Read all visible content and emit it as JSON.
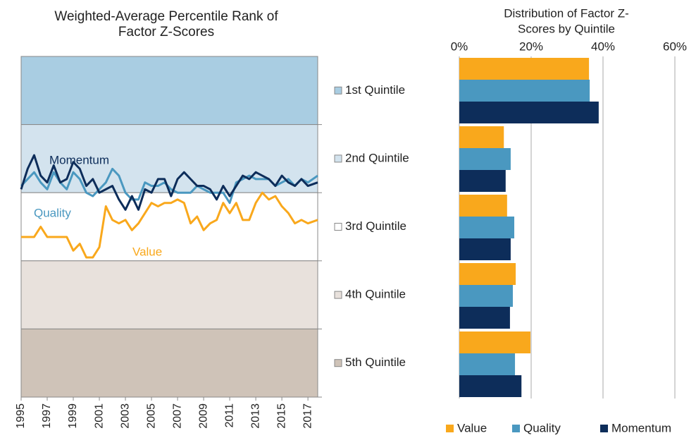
{
  "chart_data": [
    {
      "type": "line",
      "title": [
        "Weighted-Average Percentile Rank of",
        "Factor Z-Scores"
      ],
      "x": [
        1995,
        1995.5,
        1996,
        1996.5,
        1997,
        1997.5,
        1998,
        1998.5,
        1999,
        1999.5,
        2000,
        2000.5,
        2001,
        2001.5,
        2002,
        2002.5,
        2003,
        2003.5,
        2004,
        2004.5,
        2005,
        2005.5,
        2006,
        2006.5,
        2007,
        2007.5,
        2008,
        2008.5,
        2009,
        2009.5,
        2010,
        2010.5,
        2011,
        2011.5,
        2012,
        2012.5,
        2013,
        2013.5,
        2014,
        2014.5,
        2015,
        2015.5,
        2016,
        2016.5,
        2017,
        2017.75
      ],
      "xlim": [
        1995,
        2017.75
      ],
      "xticks": [
        1995,
        1997,
        1999,
        2001,
        2003,
        2005,
        2007,
        2009,
        2011,
        2013,
        2015,
        2017
      ],
      "ylim": [
        0,
        100
      ],
      "bands": [
        {
          "name": "1st Quintile",
          "color": "#a9cde2",
          "from": 80,
          "to": 100
        },
        {
          "name": "2nd Quintile",
          "color": "#d3e3ee",
          "from": 60,
          "to": 80
        },
        {
          "name": "3rd Quintile",
          "color": "#ffffff",
          "from": 40,
          "to": 60
        },
        {
          "name": "4th Quintile",
          "color": "#e8e1dc",
          "from": 20,
          "to": 40
        },
        {
          "name": "5th Quintile",
          "color": "#cfc3b8",
          "from": 0,
          "to": 20
        }
      ],
      "series": [
        {
          "name": "Momentum",
          "color": "#0d2d5a",
          "values": [
            61,
            67,
            71,
            65,
            63,
            68,
            63,
            64,
            69,
            67,
            62,
            64,
            60,
            61,
            62,
            58,
            55,
            59,
            55,
            61,
            60,
            64,
            64,
            59,
            64,
            66,
            64,
            62,
            62,
            61,
            58,
            62,
            59,
            62,
            65,
            64,
            66,
            65,
            64,
            62,
            65,
            63,
            62,
            64,
            62,
            63
          ]
        },
        {
          "name": "Quality",
          "color": "#4a98c0",
          "values": [
            62,
            64,
            66,
            63,
            61,
            66,
            63,
            61,
            66,
            64,
            60,
            59,
            61,
            63,
            67,
            65,
            60,
            58,
            58,
            63,
            62,
            62,
            63,
            61,
            60,
            60,
            60,
            62,
            61,
            60,
            60,
            60,
            57,
            63,
            64,
            65,
            64,
            64,
            64,
            62,
            63,
            64,
            62,
            64,
            63,
            65
          ]
        },
        {
          "name": "Value",
          "color": "#f9a81c",
          "values": [
            47,
            47,
            47,
            50,
            47,
            47,
            47,
            47,
            43,
            45,
            41,
            41,
            44,
            56,
            52,
            51,
            52,
            49,
            51,
            54,
            57,
            56,
            57,
            57,
            58,
            57,
            51,
            53,
            49,
            51,
            52,
            57,
            54,
            57,
            52,
            52,
            57,
            60,
            58,
            59,
            56,
            54,
            51,
            52,
            51,
            52
          ]
        }
      ]
    },
    {
      "type": "bar",
      "orientation": "horizontal",
      "title": [
        "Distribution of Factor Z-",
        "Scores by Quintile"
      ],
      "categories": [
        null,
        null,
        null,
        null,
        null
      ],
      "xlim": [
        0,
        60
      ],
      "xticks": [
        {
          "value": 0,
          "label": "0%"
        },
        {
          "value": 20,
          "label": "20%"
        },
        {
          "value": 40,
          "label": "40%"
        },
        {
          "value": 60,
          "label": "60%"
        }
      ],
      "grid": true,
      "legend": "bottom",
      "series": [
        {
          "name": "Value",
          "color": "#f9a81c",
          "values": [
            36.1,
            12.4,
            13.3,
            15.7,
            19.8
          ]
        },
        {
          "name": "Quality",
          "color": "#4a98c0",
          "values": [
            36.3,
            14.3,
            15.3,
            14.9,
            15.5
          ]
        },
        {
          "name": "Momentum",
          "color": "#0d2d5a",
          "values": [
            38.8,
            12.9,
            14.3,
            14.1,
            17.3
          ]
        }
      ]
    }
  ]
}
